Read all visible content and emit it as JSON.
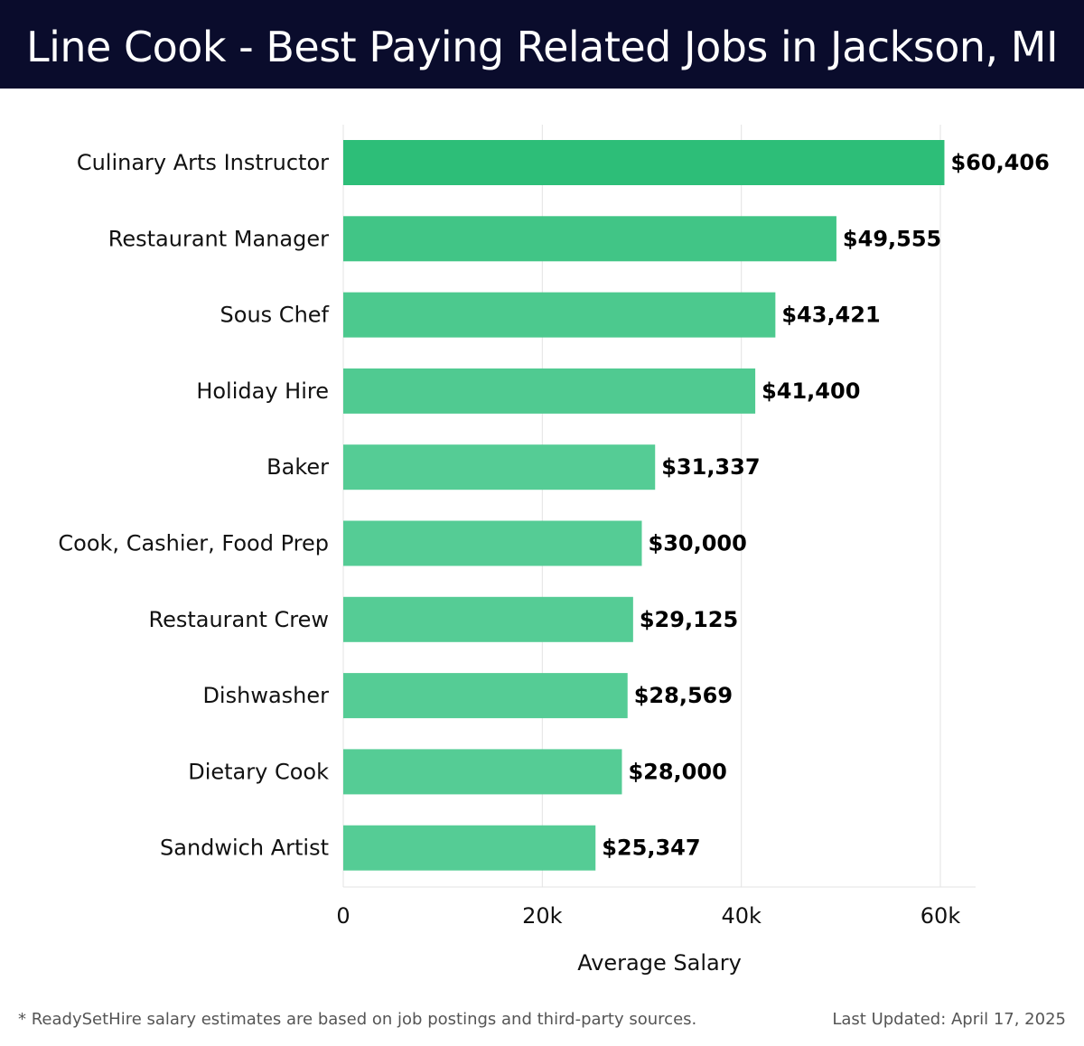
{
  "header": {
    "title": "Line Cook - Best Paying Related Jobs in Jackson, MI"
  },
  "chart_data": {
    "type": "bar",
    "orientation": "horizontal",
    "categories": [
      "Culinary Arts Instructor",
      "Restaurant Manager",
      "Sous Chef",
      "Holiday Hire",
      "Baker",
      "Cook, Cashier, Food Prep",
      "Restaurant Crew",
      "Dishwasher",
      "Dietary Cook",
      "Sandwich Artist"
    ],
    "values": [
      60406,
      49555,
      43421,
      41400,
      31337,
      30000,
      29125,
      28569,
      28000,
      25347
    ],
    "value_labels": [
      "$60,406",
      "$49,555",
      "$43,421",
      "$41,400",
      "$31,337",
      "$30,000",
      "$29,125",
      "$28,569",
      "$28,000",
      "$25,347"
    ],
    "xlabel": "Average Salary",
    "ylabel": "",
    "xlim": [
      0,
      63500
    ],
    "xticks": [
      0,
      20000,
      40000,
      60000
    ],
    "xtick_labels": [
      "0",
      "20k",
      "40k",
      "60k"
    ],
    "grid": "vertical",
    "colors": {
      "max": "#2dbe78",
      "min": "#55cc95"
    }
  },
  "footer": {
    "note": "* ReadySetHire salary estimates are based on job postings and third-party sources.",
    "updated": "Last Updated: April 17, 2025"
  }
}
